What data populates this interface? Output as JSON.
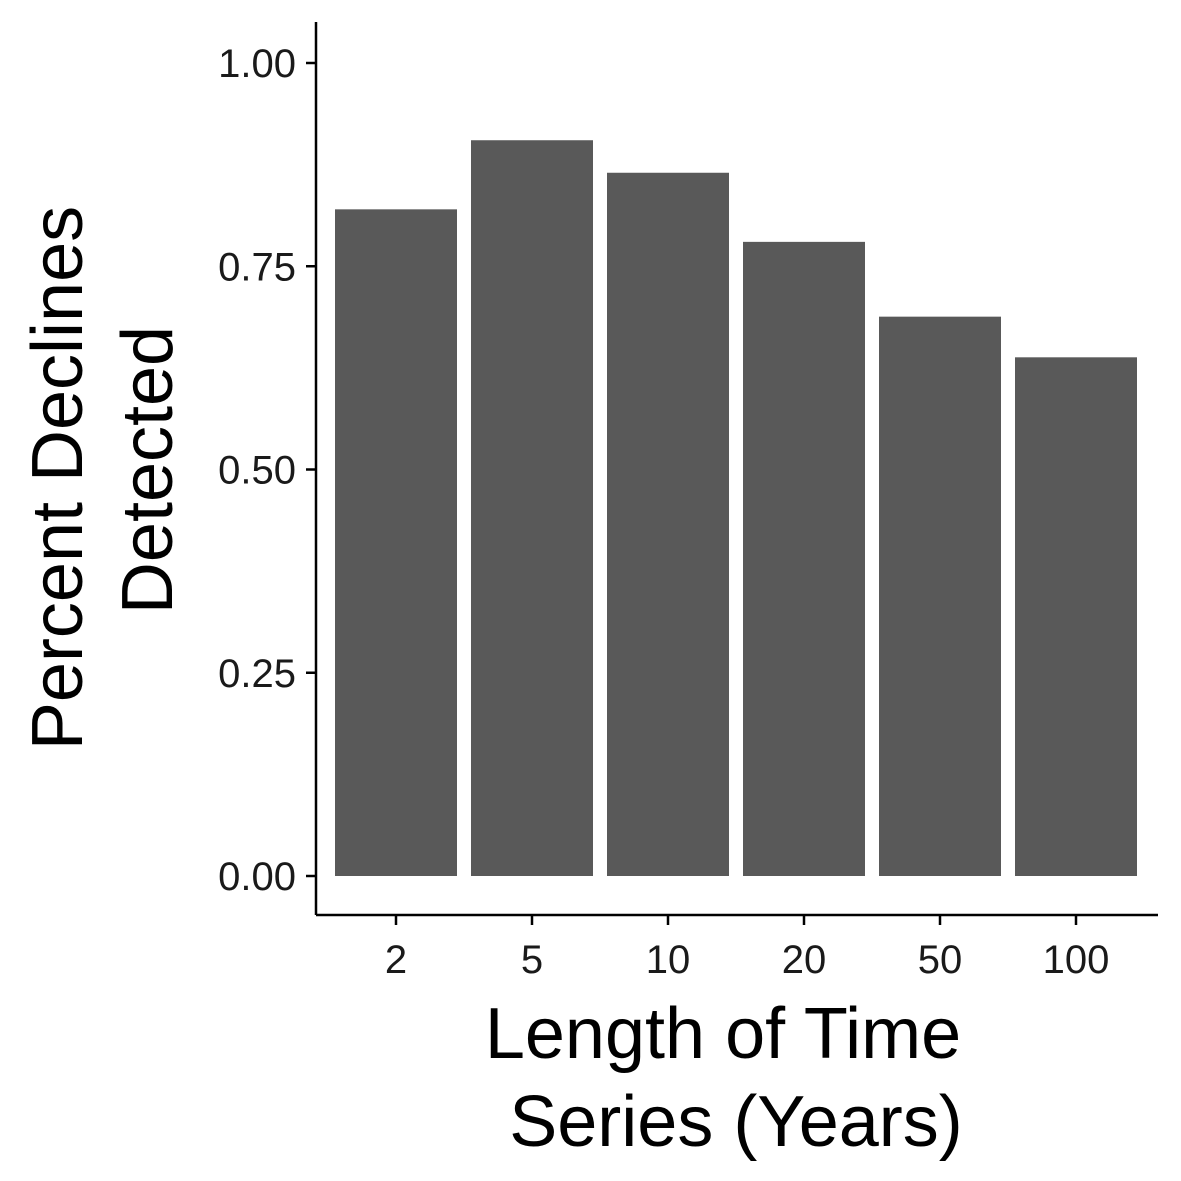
{
  "chart_data": {
    "type": "bar",
    "categories": [
      "2",
      "5",
      "10",
      "20",
      "50",
      "100"
    ],
    "values": [
      0.82,
      0.905,
      0.865,
      0.78,
      0.688,
      0.638
    ],
    "title": "",
    "xlabel": [
      "Length of Time",
      "Series (Years)"
    ],
    "ylabel": [
      "Percent Declines",
      "Detected"
    ],
    "ylim": [
      0,
      1.05
    ],
    "yticks": [
      0,
      0.25,
      0.5,
      0.75,
      1.0
    ],
    "ytick_labels": [
      "0.00",
      "0.25",
      "0.50",
      "0.75",
      "1.00"
    ],
    "bar_color": "#595959",
    "grid": false,
    "legend": "none"
  }
}
